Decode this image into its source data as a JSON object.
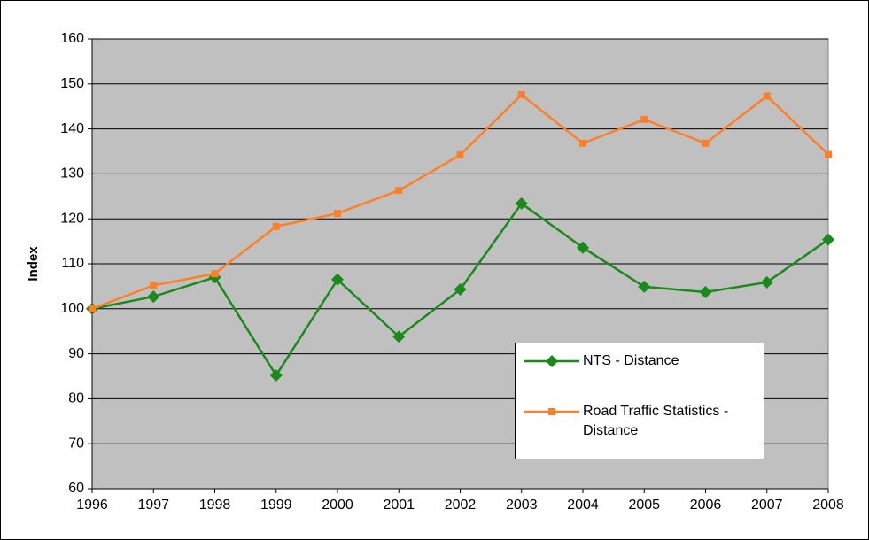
{
  "chart_data": {
    "type": "line",
    "y_label": "Index",
    "x": [
      1996,
      1997,
      1998,
      1999,
      2000,
      2001,
      2002,
      2003,
      2004,
      2005,
      2006,
      2007,
      2008
    ],
    "xlim": [
      1996,
      2008
    ],
    "xticks": [
      1996,
      1997,
      1998,
      1999,
      2000,
      2001,
      2002,
      2003,
      2004,
      2005,
      2006,
      2007,
      2008
    ],
    "ylim": [
      60,
      160
    ],
    "yticks": [
      60,
      70,
      80,
      90,
      100,
      110,
      120,
      130,
      140,
      150,
      160
    ],
    "grid": true,
    "series": [
      {
        "name": "NTS - Distance",
        "color": "#1a8a1a",
        "marker": "diamond",
        "values": [
          100,
          102.7,
          107,
          85.2,
          106.5,
          93.8,
          104.3,
          123.4,
          113.6,
          104.9,
          103.7,
          105.9,
          115.4
        ]
      },
      {
        "name": "Road Traffic Statistics - Distance",
        "color": "#ff7f27",
        "marker": "square",
        "values": [
          100,
          105.2,
          107.8,
          118.3,
          121.2,
          126.3,
          134.2,
          147.6,
          136.8,
          142.1,
          136.8,
          147.3,
          134.3
        ]
      }
    ]
  }
}
